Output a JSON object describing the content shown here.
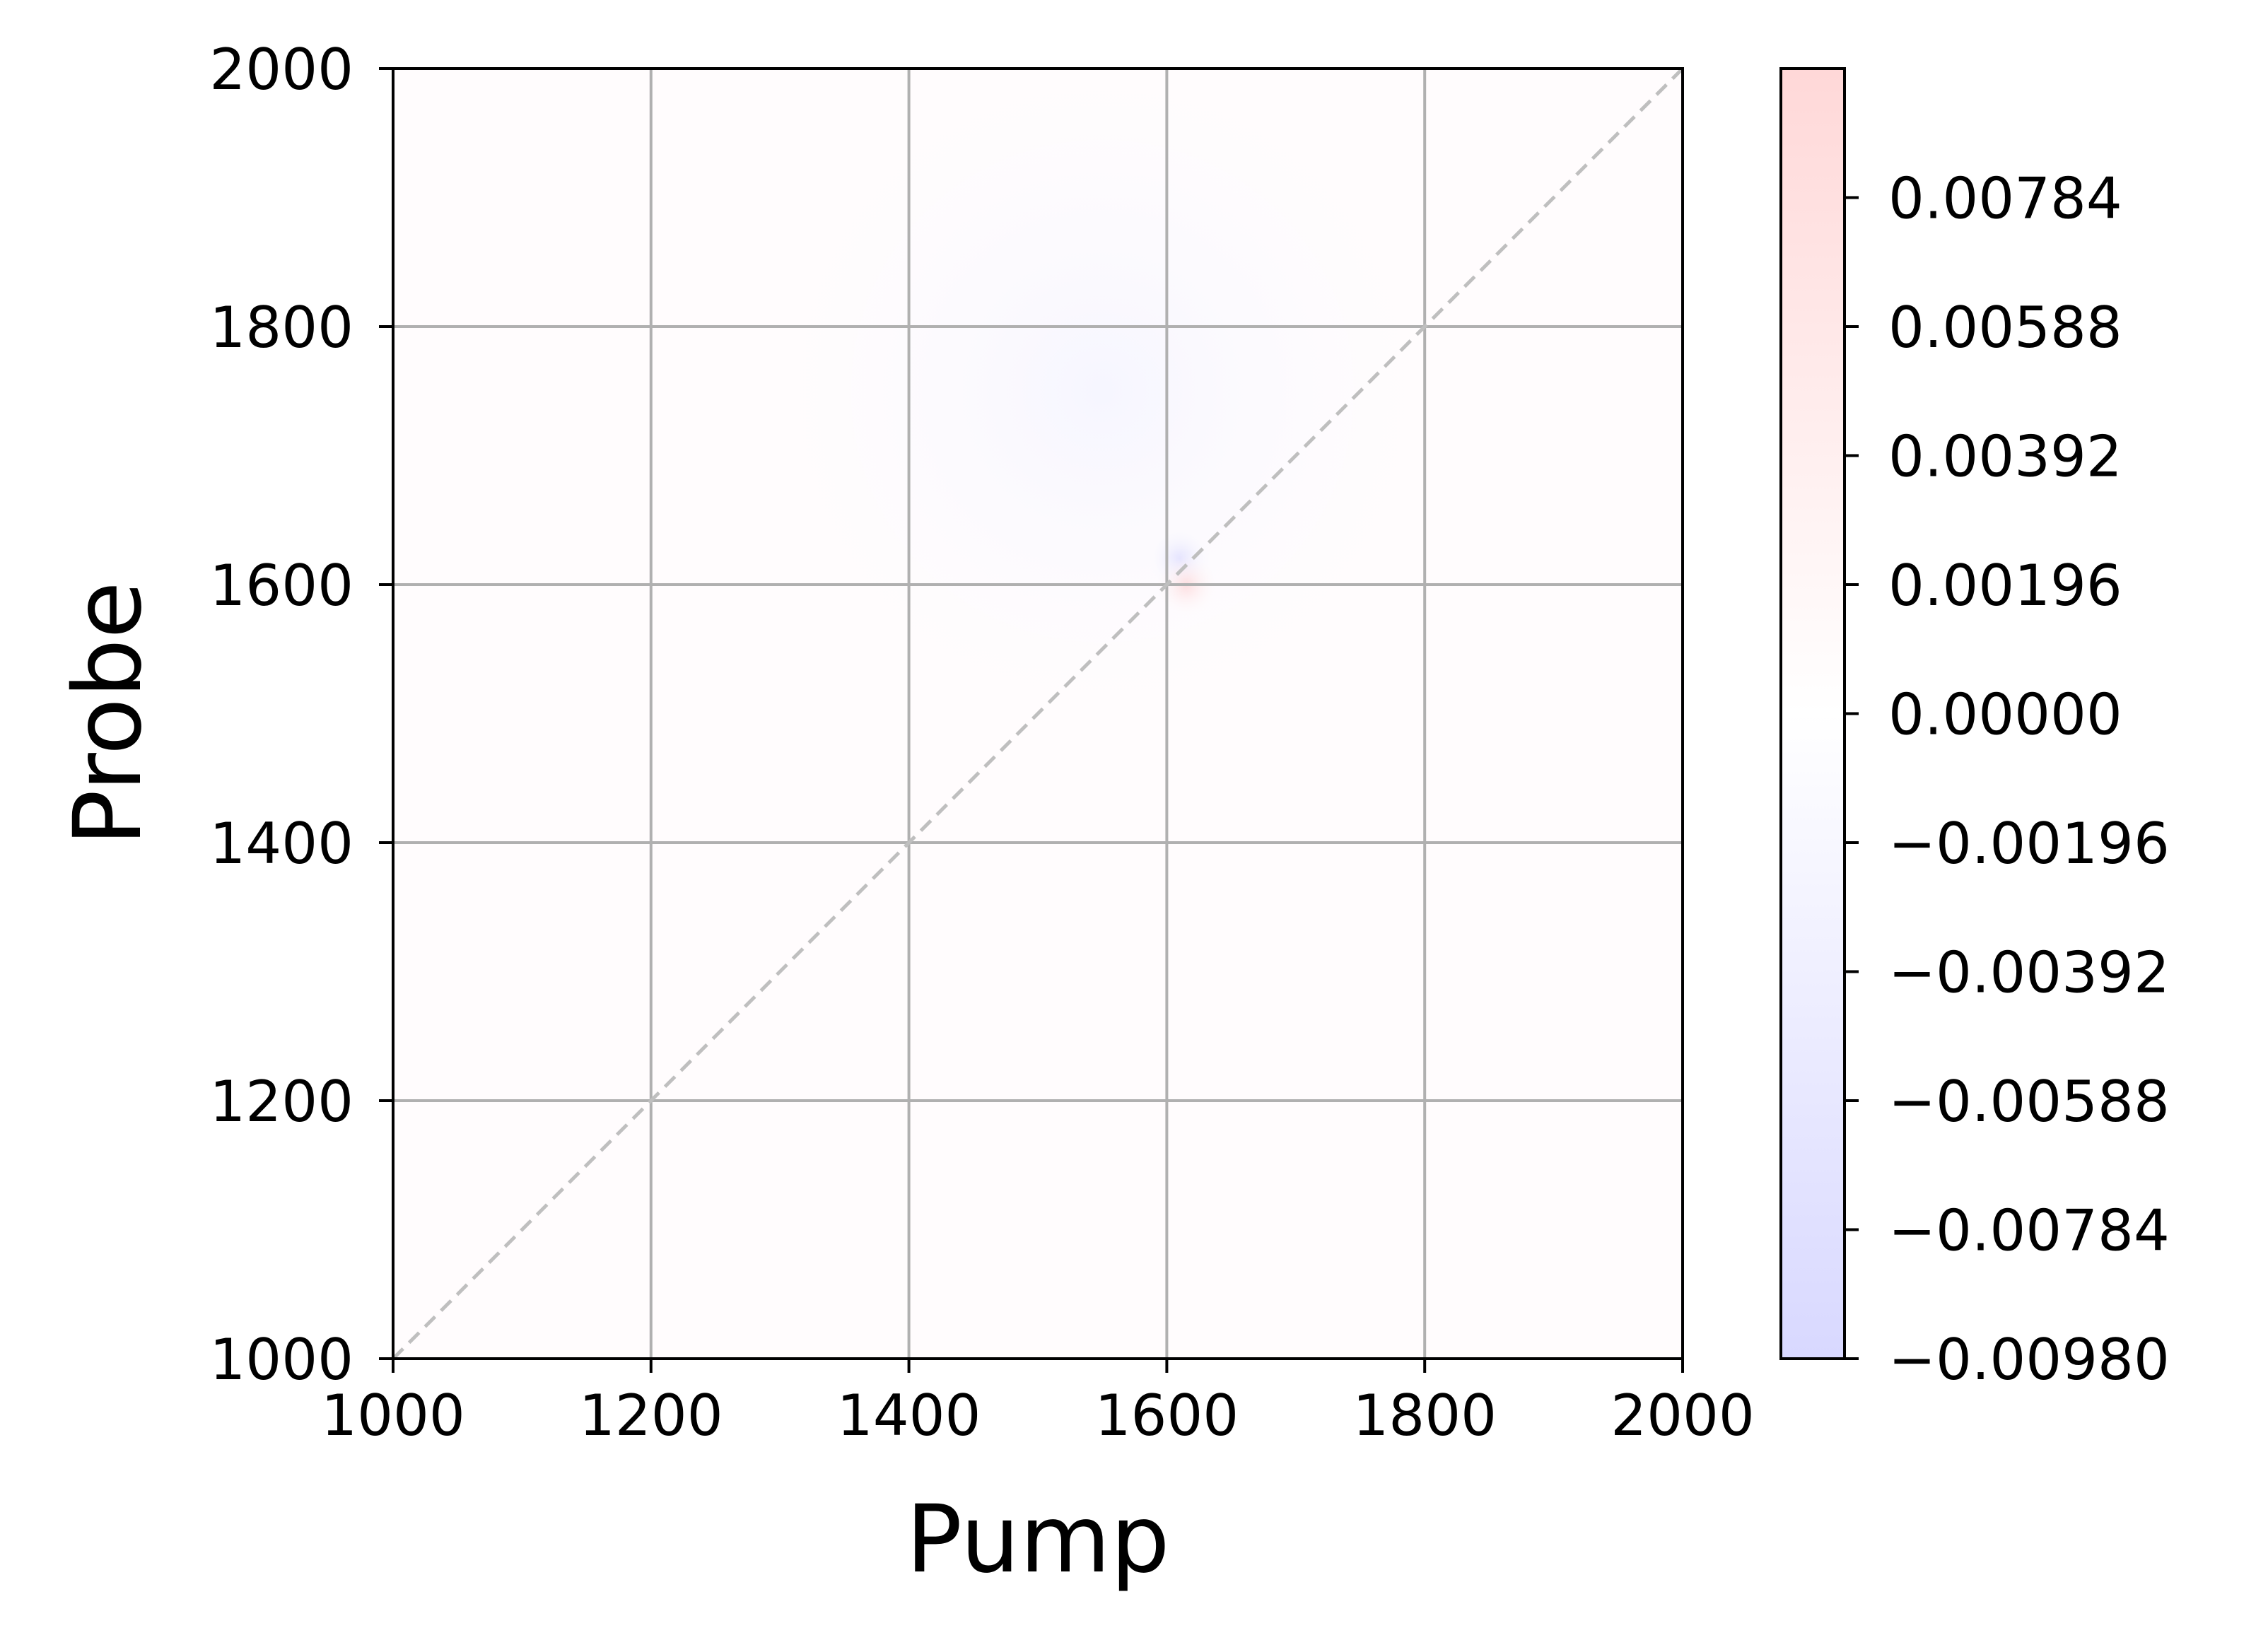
{
  "chart_data": {
    "type": "heatmap",
    "xlabel": "Pump",
    "ylabel": "Probe",
    "xlim": [
      1000,
      2000
    ],
    "ylim": [
      1000,
      2000
    ],
    "xticks": [
      "1000",
      "1200",
      "1400",
      "1600",
      "1800",
      "2000"
    ],
    "yticks": [
      "1000",
      "1200",
      "1400",
      "1600",
      "1800",
      "2000"
    ],
    "grid": true,
    "diagonal_line": {
      "style": "dashed",
      "color": "#bfbfbf",
      "from": [
        1000,
        1000
      ],
      "to": [
        2000,
        2000
      ]
    },
    "colormap": {
      "name": "bwr",
      "low_color": "#0000ff",
      "mid_color": "#ffffff",
      "high_color": "#ff0000",
      "alpha": 0.15
    },
    "colorbar": {
      "vmin": -0.0098,
      "vmax": 0.0098,
      "ticks": [
        "0.00784",
        "0.00588",
        "0.00392",
        "0.00196",
        "0.00000",
        "−0.00196",
        "−0.00392",
        "−0.00588",
        "−0.00784",
        "−0.00980"
      ],
      "tick_values": [
        0.00784,
        0.00588,
        0.00392,
        0.00196,
        0.0,
        -0.00196,
        -0.00392,
        -0.00588,
        -0.00784,
        -0.0098
      ]
    },
    "features": [
      {
        "name": "negative-spot",
        "x": 1610,
        "y": 1620,
        "value": -0.004
      },
      {
        "name": "positive-spot",
        "x": 1615,
        "y": 1600,
        "value": 0.004
      },
      {
        "name": "faint-negative-region",
        "x": 1550,
        "y": 1750,
        "value": -0.0005
      },
      {
        "name": "faint-positive-background",
        "x": 1300,
        "y": 1300,
        "value": 0.0003
      }
    ]
  }
}
